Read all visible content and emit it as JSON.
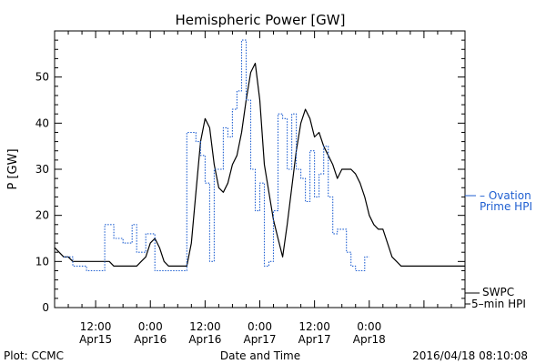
{
  "chart_data": {
    "type": "line",
    "title": "Hemispheric Power [GW]",
    "xlabel": "Date and Time",
    "ylabel": "P [GW]",
    "ylim": [
      0,
      60
    ],
    "yticks": [
      0,
      10,
      20,
      30,
      40,
      50
    ],
    "xlim": [
      "2016-04-15 03:00",
      "2016-04-18 21:00"
    ],
    "xticks": [
      {
        "t": "2016-04-15 12:00",
        "line1": "12:00",
        "line2": "Apr15"
      },
      {
        "t": "2016-04-16 00:00",
        "line1": "0:00",
        "line2": "Apr16"
      },
      {
        "t": "2016-04-16 12:00",
        "line1": "12:00",
        "line2": "Apr16"
      },
      {
        "t": "2016-04-17 00:00",
        "line1": "0:00",
        "line2": "Apr17"
      },
      {
        "t": "2016-04-17 12:00",
        "line1": "12:00",
        "line2": "Apr17"
      },
      {
        "t": "2016-04-18 00:00",
        "line1": "0:00",
        "line2": "Apr18"
      }
    ],
    "grid": false,
    "legend_position": "right",
    "footer_left": "Plot: CCMC",
    "footer_right": "2016/04/18 08:10:08",
    "series": [
      {
        "name": "SWPC 5-min HPI",
        "legend_line1": "SWPC",
        "legend_line2": "5–min HPI",
        "color": "#000000",
        "style": "solid",
        "points": [
          [
            "2016-04-15 03:00",
            13
          ],
          [
            "2016-04-15 04:00",
            12
          ],
          [
            "2016-04-15 05:00",
            11
          ],
          [
            "2016-04-15 06:00",
            11
          ],
          [
            "2016-04-15 07:00",
            10
          ],
          [
            "2016-04-15 08:00",
            10
          ],
          [
            "2016-04-15 09:00",
            10
          ],
          [
            "2016-04-15 10:00",
            10
          ],
          [
            "2016-04-15 11:00",
            10
          ],
          [
            "2016-04-15 12:00",
            10
          ],
          [
            "2016-04-15 13:00",
            10
          ],
          [
            "2016-04-15 14:00",
            10
          ],
          [
            "2016-04-15 15:00",
            10
          ],
          [
            "2016-04-15 16:00",
            9
          ],
          [
            "2016-04-15 17:00",
            9
          ],
          [
            "2016-04-15 18:00",
            9
          ],
          [
            "2016-04-15 19:00",
            9
          ],
          [
            "2016-04-15 20:00",
            9
          ],
          [
            "2016-04-15 21:00",
            9
          ],
          [
            "2016-04-15 22:00",
            10
          ],
          [
            "2016-04-15 23:00",
            11
          ],
          [
            "2016-04-16 00:00",
            14
          ],
          [
            "2016-04-16 01:00",
            15
          ],
          [
            "2016-04-16 02:00",
            13
          ],
          [
            "2016-04-16 03:00",
            10
          ],
          [
            "2016-04-16 04:00",
            9
          ],
          [
            "2016-04-16 05:00",
            9
          ],
          [
            "2016-04-16 06:00",
            9
          ],
          [
            "2016-04-16 07:00",
            9
          ],
          [
            "2016-04-16 08:00",
            9
          ],
          [
            "2016-04-16 09:00",
            14
          ],
          [
            "2016-04-16 10:00",
            25
          ],
          [
            "2016-04-16 11:00",
            36
          ],
          [
            "2016-04-16 12:00",
            41
          ],
          [
            "2016-04-16 13:00",
            39
          ],
          [
            "2016-04-16 14:00",
            31
          ],
          [
            "2016-04-16 15:00",
            26
          ],
          [
            "2016-04-16 16:00",
            25
          ],
          [
            "2016-04-16 17:00",
            27
          ],
          [
            "2016-04-16 18:00",
            31
          ],
          [
            "2016-04-16 19:00",
            33
          ],
          [
            "2016-04-16 20:00",
            38
          ],
          [
            "2016-04-16 21:00",
            45
          ],
          [
            "2016-04-16 22:00",
            51
          ],
          [
            "2016-04-16 23:00",
            53
          ],
          [
            "2016-04-17 00:00",
            45
          ],
          [
            "2016-04-17 01:00",
            31
          ],
          [
            "2016-04-17 02:00",
            25
          ],
          [
            "2016-04-17 03:00",
            19
          ],
          [
            "2016-04-17 04:00",
            15
          ],
          [
            "2016-04-17 05:00",
            11
          ],
          [
            "2016-04-17 06:00",
            18
          ],
          [
            "2016-04-17 07:00",
            26
          ],
          [
            "2016-04-17 08:00",
            34
          ],
          [
            "2016-04-17 09:00",
            40
          ],
          [
            "2016-04-17 10:00",
            43
          ],
          [
            "2016-04-17 11:00",
            41
          ],
          [
            "2016-04-17 12:00",
            37
          ],
          [
            "2016-04-17 13:00",
            38
          ],
          [
            "2016-04-17 14:00",
            35
          ],
          [
            "2016-04-17 15:00",
            33
          ],
          [
            "2016-04-17 16:00",
            31
          ],
          [
            "2016-04-17 17:00",
            28
          ],
          [
            "2016-04-17 18:00",
            30
          ],
          [
            "2016-04-17 19:00",
            30
          ],
          [
            "2016-04-17 20:00",
            30
          ],
          [
            "2016-04-17 21:00",
            29
          ],
          [
            "2016-04-17 22:00",
            27
          ],
          [
            "2016-04-17 23:00",
            24
          ],
          [
            "2016-04-18 00:00",
            20
          ],
          [
            "2016-04-18 01:00",
            18
          ],
          [
            "2016-04-18 02:00",
            17
          ],
          [
            "2016-04-18 03:00",
            17
          ],
          [
            "2016-04-18 04:00",
            14
          ],
          [
            "2016-04-18 05:00",
            11
          ],
          [
            "2016-04-18 06:00",
            10
          ],
          [
            "2016-04-18 07:00",
            9
          ],
          [
            "2016-04-18 08:00",
            9
          ],
          [
            "2016-04-18 09:00",
            9
          ],
          [
            "2016-04-18 10:00",
            9
          ],
          [
            "2016-04-18 11:00",
            9
          ],
          [
            "2016-04-18 12:00",
            9
          ],
          [
            "2016-04-18 13:00",
            9
          ],
          [
            "2016-04-18 14:00",
            9
          ],
          [
            "2016-04-18 15:00",
            9
          ],
          [
            "2016-04-18 16:00",
            9
          ],
          [
            "2016-04-18 17:00",
            9
          ],
          [
            "2016-04-18 18:00",
            9
          ],
          [
            "2016-04-18 19:00",
            9
          ],
          [
            "2016-04-18 20:00",
            9
          ],
          [
            "2016-04-18 21:00",
            9
          ]
        ]
      },
      {
        "name": "Ovation Prime HPI",
        "legend_line1": "– Ovation",
        "legend_line2": "Prime HPI",
        "color": "#1f5fd1",
        "style": "dotted",
        "points": [
          [
            "2016-04-15 05:00",
            11
          ],
          [
            "2016-04-15 07:00",
            11
          ],
          [
            "2016-04-15 07:00",
            9
          ],
          [
            "2016-04-15 10:00",
            9
          ],
          [
            "2016-04-15 10:00",
            8
          ],
          [
            "2016-04-15 14:00",
            8
          ],
          [
            "2016-04-15 14:00",
            18
          ],
          [
            "2016-04-15 16:00",
            18
          ],
          [
            "2016-04-15 16:00",
            15
          ],
          [
            "2016-04-15 18:00",
            15
          ],
          [
            "2016-04-15 18:00",
            14
          ],
          [
            "2016-04-15 20:00",
            14
          ],
          [
            "2016-04-15 20:00",
            18
          ],
          [
            "2016-04-15 21:00",
            18
          ],
          [
            "2016-04-15 21:00",
            12
          ],
          [
            "2016-04-15 23:00",
            12
          ],
          [
            "2016-04-15 23:00",
            16
          ],
          [
            "2016-04-16 01:00",
            16
          ],
          [
            "2016-04-16 01:00",
            8
          ],
          [
            "2016-04-16 08:00",
            8
          ],
          [
            "2016-04-16 08:00",
            38
          ],
          [
            "2016-04-16 10:00",
            38
          ],
          [
            "2016-04-16 10:00",
            36
          ],
          [
            "2016-04-16 11:00",
            36
          ],
          [
            "2016-04-16 11:00",
            33
          ],
          [
            "2016-04-16 12:00",
            33
          ],
          [
            "2016-04-16 12:00",
            27
          ],
          [
            "2016-04-16 13:00",
            27
          ],
          [
            "2016-04-16 13:00",
            10
          ],
          [
            "2016-04-16 14:00",
            10
          ],
          [
            "2016-04-16 14:00",
            30
          ],
          [
            "2016-04-16 16:00",
            30
          ],
          [
            "2016-04-16 16:00",
            39
          ],
          [
            "2016-04-16 17:00",
            39
          ],
          [
            "2016-04-16 17:00",
            37
          ],
          [
            "2016-04-16 18:00",
            37
          ],
          [
            "2016-04-16 18:00",
            43
          ],
          [
            "2016-04-16 19:00",
            43
          ],
          [
            "2016-04-16 19:00",
            47
          ],
          [
            "2016-04-16 20:00",
            47
          ],
          [
            "2016-04-16 20:00",
            58
          ],
          [
            "2016-04-16 21:00",
            58
          ],
          [
            "2016-04-16 21:00",
            45
          ],
          [
            "2016-04-16 22:00",
            45
          ],
          [
            "2016-04-16 22:00",
            30
          ],
          [
            "2016-04-16 23:00",
            30
          ],
          [
            "2016-04-16 23:00",
            21
          ],
          [
            "2016-04-17 00:00",
            21
          ],
          [
            "2016-04-17 00:00",
            27
          ],
          [
            "2016-04-17 01:00",
            27
          ],
          [
            "2016-04-17 01:00",
            9
          ],
          [
            "2016-04-17 02:00",
            9
          ],
          [
            "2016-04-17 02:00",
            10
          ],
          [
            "2016-04-17 03:00",
            10
          ],
          [
            "2016-04-17 03:00",
            21
          ],
          [
            "2016-04-17 04:00",
            21
          ],
          [
            "2016-04-17 04:00",
            42
          ],
          [
            "2016-04-17 05:00",
            42
          ],
          [
            "2016-04-17 05:00",
            41
          ],
          [
            "2016-04-17 06:00",
            41
          ],
          [
            "2016-04-17 06:00",
            30
          ],
          [
            "2016-04-17 07:00",
            30
          ],
          [
            "2016-04-17 07:00",
            42
          ],
          [
            "2016-04-17 08:00",
            42
          ],
          [
            "2016-04-17 08:00",
            30
          ],
          [
            "2016-04-17 09:00",
            30
          ],
          [
            "2016-04-17 09:00",
            28
          ],
          [
            "2016-04-17 10:00",
            28
          ],
          [
            "2016-04-17 10:00",
            23
          ],
          [
            "2016-04-17 11:00",
            23
          ],
          [
            "2016-04-17 11:00",
            34
          ],
          [
            "2016-04-17 12:00",
            34
          ],
          [
            "2016-04-17 12:00",
            24
          ],
          [
            "2016-04-17 13:00",
            24
          ],
          [
            "2016-04-17 13:00",
            29
          ],
          [
            "2016-04-17 14:00",
            29
          ],
          [
            "2016-04-17 14:00",
            35
          ],
          [
            "2016-04-17 15:00",
            35
          ],
          [
            "2016-04-17 15:00",
            24
          ],
          [
            "2016-04-17 16:00",
            24
          ],
          [
            "2016-04-17 16:00",
            16
          ],
          [
            "2016-04-17 17:00",
            16
          ],
          [
            "2016-04-17 17:00",
            17
          ],
          [
            "2016-04-17 19:00",
            17
          ],
          [
            "2016-04-17 19:00",
            12
          ],
          [
            "2016-04-17 20:00",
            12
          ],
          [
            "2016-04-17 20:00",
            9
          ],
          [
            "2016-04-17 21:00",
            9
          ],
          [
            "2016-04-17 21:00",
            8
          ],
          [
            "2016-04-17 23:00",
            8
          ],
          [
            "2016-04-17 23:00",
            11
          ],
          [
            "2016-04-18 00:00",
            11
          ]
        ]
      }
    ]
  }
}
